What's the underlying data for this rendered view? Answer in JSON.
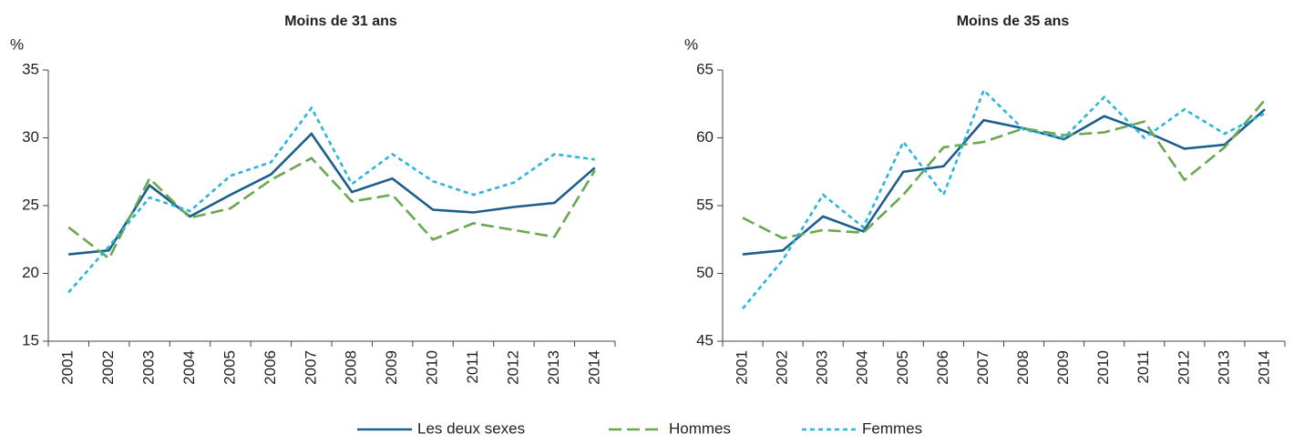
{
  "chart_data": [
    {
      "type": "line",
      "title": "Moins de 31 ans",
      "ylabel": "%",
      "categories": [
        "2001",
        "2002",
        "2003",
        "2004",
        "2005",
        "2006",
        "2007",
        "2008",
        "2009",
        "2010",
        "2011",
        "2012",
        "2013",
        "2014"
      ],
      "ylim": [
        15,
        35
      ],
      "yticks": [
        15,
        20,
        25,
        30,
        35
      ],
      "series": [
        {
          "name": "Les deux sexes",
          "color": "#1b5e8c",
          "dash": "solid",
          "values": [
            21.4,
            21.7,
            26.5,
            24.2,
            25.8,
            27.3,
            30.3,
            26.0,
            27.0,
            24.7,
            24.5,
            24.9,
            25.2,
            27.8
          ]
        },
        {
          "name": "Hommes",
          "color": "#6aa84f",
          "dash": "dashed",
          "values": [
            23.4,
            21.1,
            27.0,
            24.1,
            24.8,
            26.9,
            28.5,
            25.3,
            25.8,
            22.5,
            23.7,
            23.2,
            22.7,
            27.6
          ]
        },
        {
          "name": "Femmes",
          "color": "#2bb5db",
          "dash": "dotted",
          "values": [
            18.6,
            22.0,
            25.6,
            24.6,
            27.2,
            28.2,
            32.2,
            26.6,
            28.8,
            26.8,
            25.8,
            26.7,
            28.8,
            28.4
          ]
        }
      ]
    },
    {
      "type": "line",
      "title": "Moins de 35 ans",
      "ylabel": "%",
      "categories": [
        "2001",
        "2002",
        "2003",
        "2004",
        "2005",
        "2006",
        "2007",
        "2008",
        "2009",
        "2010",
        "2011",
        "2012",
        "2013",
        "2014"
      ],
      "ylim": [
        45,
        65
      ],
      "yticks": [
        45,
        50,
        55,
        60,
        65
      ],
      "series": [
        {
          "color": "#1b5e8c",
          "dash": "solid",
          "values": [
            51.4,
            51.7,
            54.2,
            53.1,
            57.5,
            57.9,
            61.3,
            60.7,
            59.9,
            61.6,
            60.5,
            59.2,
            59.5,
            62.1
          ]
        },
        {
          "color": "#6aa84f",
          "dash": "dashed",
          "values": [
            54.1,
            52.6,
            53.2,
            53.0,
            55.8,
            59.3,
            59.7,
            60.7,
            60.2,
            60.4,
            61.2,
            56.9,
            59.3,
            62.8
          ]
        },
        {
          "color": "#2bb5db",
          "dash": "dotted",
          "values": [
            47.4,
            51.0,
            55.8,
            53.4,
            59.7,
            55.8,
            63.5,
            60.6,
            60.0,
            63.0,
            60.0,
            62.1,
            60.3,
            61.8
          ]
        }
      ]
    }
  ]
}
